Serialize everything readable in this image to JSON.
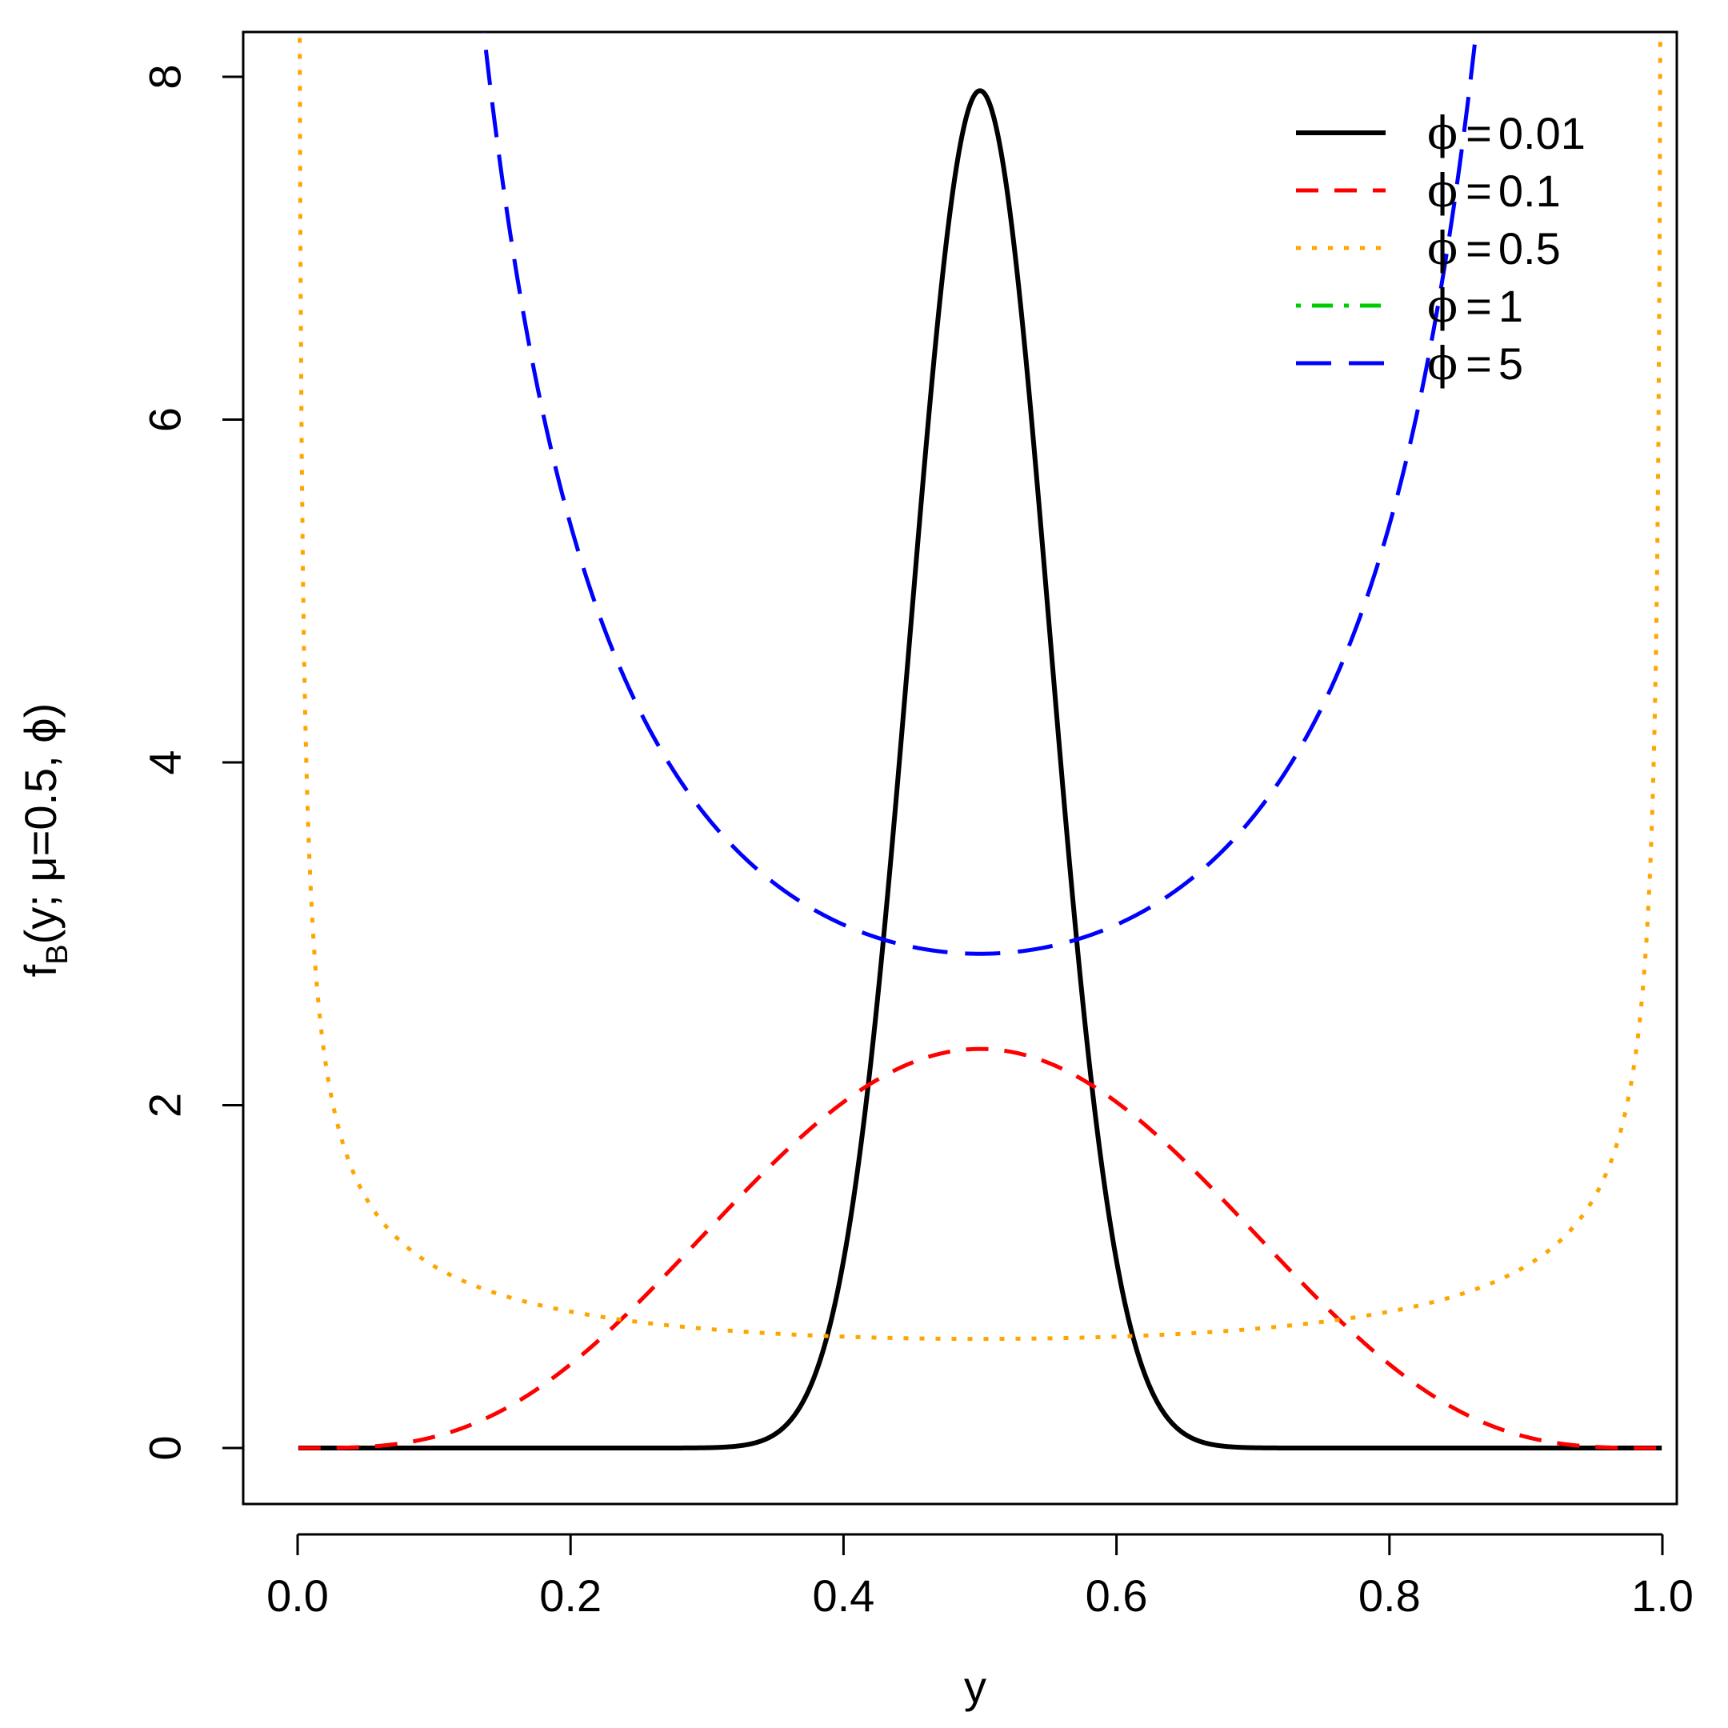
{
  "chart_data": {
    "type": "line",
    "title": "",
    "xlabel": "y",
    "ylabel": {
      "base": "f",
      "subscript": "B",
      "args": "(y; μ=0.5, ϕ)"
    },
    "xlim": [
      0,
      1
    ],
    "ylim": [
      0,
      8
    ],
    "xticks": [
      {
        "value": 0.0,
        "label": "0.0"
      },
      {
        "value": 0.2,
        "label": "0.2"
      },
      {
        "value": 0.4,
        "label": "0.4"
      },
      {
        "value": 0.6,
        "label": "0.6"
      },
      {
        "value": 0.8,
        "label": "0.8"
      },
      {
        "value": 1.0,
        "label": "1.0"
      }
    ],
    "yticks": [
      {
        "value": 0,
        "label": "0"
      },
      {
        "value": 2,
        "label": "2"
      },
      {
        "value": 4,
        "label": "4"
      },
      {
        "value": 6,
        "label": "6"
      },
      {
        "value": 8,
        "label": "8"
      }
    ],
    "grid": false,
    "legend_position": "top-right",
    "mu": 0.5,
    "distribution": "beta",
    "series": [
      {
        "name": "ϕ = 0.01",
        "symbol": "ϕ",
        "value_label": "0.01",
        "phi": 0.01,
        "color": "#000000",
        "dash": "none",
        "description": "solid"
      },
      {
        "name": "ϕ = 0.1",
        "symbol": "ϕ",
        "value_label": "0.1",
        "phi": 0.1,
        "color": "#FF0000",
        "dash": "dashed",
        "description": "dashed"
      },
      {
        "name": "ϕ = 0.5",
        "symbol": "ϕ",
        "value_label": "0.5",
        "phi": 0.5,
        "color": "#FFA500",
        "dash": "dotted",
        "description": "dotted"
      },
      {
        "name": "ϕ = 1",
        "symbol": "ϕ",
        "value_label": "1",
        "phi": 1,
        "color": "#00CD00",
        "dash": "dotdash",
        "description": "dot-dash"
      },
      {
        "name": "ϕ = 5",
        "symbol": "ϕ",
        "value_label": "5",
        "phi": 5,
        "color": "#0000FF",
        "dash": "longdash",
        "description": "long dash"
      }
    ]
  }
}
